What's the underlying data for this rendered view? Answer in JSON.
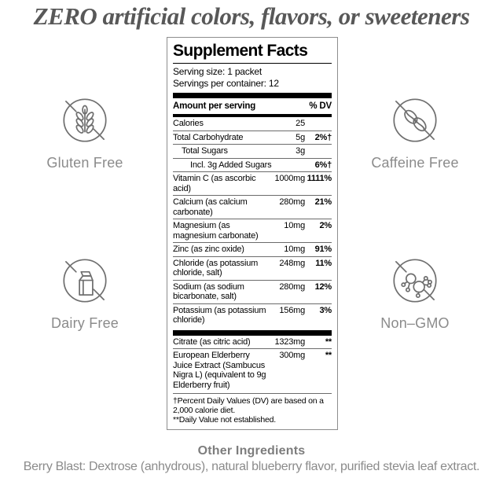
{
  "headline": "ZERO artificial colors, flavors, or sweeteners",
  "badges": {
    "gluten_free": "Gluten Free",
    "caffeine_free": "Caffeine Free",
    "dairy_free": "Dairy Free",
    "non_gmo": "Non–GMO"
  },
  "panel": {
    "title": "Supplement Facts",
    "serving_size": "Serving size: 1 packet",
    "servings_per_container": "Servings per container: 12",
    "header": {
      "left": "Amount per serving",
      "right": "% DV"
    },
    "main_rows": [
      {
        "name": "Calories",
        "amount": "25",
        "dv": "",
        "indent": 0
      },
      {
        "name": "Total Carbohydrate",
        "amount": "5g",
        "dv": "2%†",
        "indent": 0
      },
      {
        "name": "Total Sugars",
        "amount": "3g",
        "dv": "",
        "indent": 1
      },
      {
        "name": "Incl. 3g Added Sugars",
        "amount": "",
        "dv": "6%†",
        "indent": 2
      },
      {
        "name": "Vitamin C (as ascorbic acid)",
        "amount": "1000mg",
        "dv": "1111%",
        "indent": 0
      },
      {
        "name": "Calcium (as calcium carbonate)",
        "amount": "280mg",
        "dv": "21%",
        "indent": 0
      },
      {
        "name": "Magnesium (as magnesium carbonate)",
        "amount": "10mg",
        "dv": "2%",
        "indent": 0
      },
      {
        "name": "Zinc (as zinc oxide)",
        "amount": "10mg",
        "dv": "91%",
        "indent": 0
      },
      {
        "name": "Chloride (as potassium chloride, salt)",
        "amount": "248mg",
        "dv": "11%",
        "indent": 0
      },
      {
        "name": "Sodium (as sodium bicarbonate, salt)",
        "amount": "280mg",
        "dv": "12%",
        "indent": 0
      },
      {
        "name": "Potassium (as potassium chloride)",
        "amount": "156mg",
        "dv": "3%",
        "indent": 0
      }
    ],
    "secondary_rows": [
      {
        "name": "Citrate (as citric acid)",
        "amount": "1323mg",
        "dv": "**",
        "indent": 0
      },
      {
        "name": "European Elderberry Juice Extract (Sambucus Nigra L) (equivalent to 9g Elderberry fruit)",
        "amount": "300mg",
        "dv": "**",
        "indent": 0
      }
    ],
    "footnotes": [
      "†Percent Daily Values (DV) are based on a 2,000 calorie diet.",
      "**Daily Value not established."
    ]
  },
  "other_ingredients": {
    "title": "Other Ingredients",
    "text": "Berry Blast: Dextrose (anhydrous), natural blueberry flavor, purified stevia leaf extract."
  },
  "colors": {
    "headline_text": "#585858",
    "muted_text": "#8b8b8b",
    "icon_stroke": "#6f6f6f",
    "panel_ink": "#000000",
    "panel_border": "#8d8d8d",
    "bg": "#ffffff"
  }
}
